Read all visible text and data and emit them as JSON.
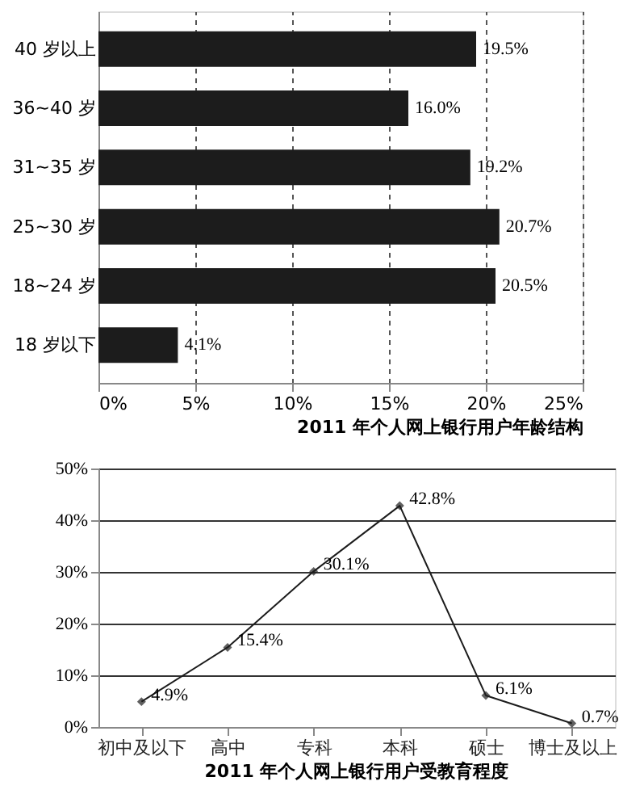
{
  "chart_data": [
    {
      "type": "bar",
      "orientation": "horizontal",
      "title": "2011 年个人网上银行用户年龄结构",
      "categories": [
        "40 岁以上",
        "36~40 岁",
        "31~35 岁",
        "25~30 岁",
        "18~24 岁",
        "18 岁以下"
      ],
      "values": [
        19.5,
        16.0,
        19.2,
        20.7,
        20.5,
        4.1
      ],
      "color": "#1c1c1c",
      "value_labels": [
        "19.5%",
        "16.0%",
        "19.2%",
        "20.7%",
        "20.5%",
        "4.1%"
      ],
      "xlim": [
        0,
        25
      ],
      "xticks": [
        {
          "value": 0,
          "label": "0%"
        },
        {
          "value": 5,
          "label": "5%"
        },
        {
          "value": 10,
          "label": "10%"
        },
        {
          "value": 15,
          "label": "15%"
        },
        {
          "value": 20,
          "label": "20%"
        },
        {
          "value": 25,
          "label": "25%"
        }
      ],
      "grid": "x"
    },
    {
      "type": "line",
      "title": "2011 年个人网上银行用户受教育程度",
      "categories": [
        "初中及以下",
        "高中",
        "专科",
        "本科",
        "硕士",
        "博士及以上"
      ],
      "values": [
        4.9,
        15.4,
        30.1,
        42.8,
        6.1,
        0.7
      ],
      "color": "#1c1c1c",
      "value_labels": [
        "4.9%",
        "15.4%",
        "30.1%",
        "42.8%",
        "6.1%",
        "0.7%"
      ],
      "ylim": [
        0,
        50
      ],
      "yticks": [
        {
          "value": 0,
          "label": "0%"
        },
        {
          "value": 10,
          "label": "10%"
        },
        {
          "value": 20,
          "label": "20%"
        },
        {
          "value": 30,
          "label": "30%"
        },
        {
          "value": 40,
          "label": "40%"
        },
        {
          "value": 50,
          "label": "50%"
        }
      ],
      "grid": "y",
      "marker": "diamond",
      "line_style": "solid"
    }
  ]
}
